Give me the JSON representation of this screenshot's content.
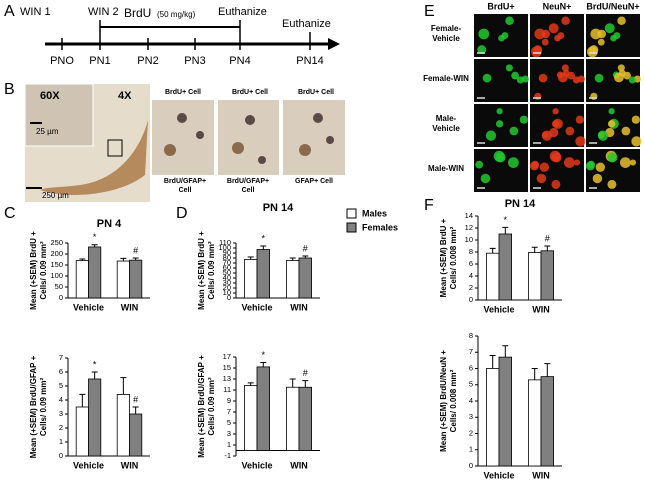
{
  "panel_labels": [
    "A",
    "B",
    "C",
    "D",
    "E",
    "F"
  ],
  "timeline": {
    "treatments": [
      "WIN 1",
      "WIN 2"
    ],
    "brdu": "BrdU",
    "brdu_dose": "(50 mg/kg)",
    "euthanize": [
      "Euthanize",
      "Euthanize"
    ],
    "days": [
      "PNO",
      "PN1",
      "PN2",
      "PN3",
      "PN4",
      "PN14"
    ]
  },
  "micrographs": {
    "magnifications": [
      "60X",
      "4X"
    ],
    "scale_bars": [
      "25 µm",
      "250 µm"
    ],
    "cell_labels": [
      [
        "BrdU+ Cell"
      ],
      [
        "BrdU/GFAP+",
        "Cell"
      ],
      [
        "BrdU+ Cell"
      ],
      [
        "BrdU/GFAP+",
        "Cell"
      ],
      [
        "BrdU+ Cell"
      ],
      [
        "GFAP+ Cell"
      ]
    ]
  },
  "fluorescence": {
    "columns": [
      "BrdU+",
      "NeuN+",
      "BrdU/NeuN+"
    ],
    "rows": [
      [
        "Female-",
        "Vehicle"
      ],
      [
        "Female-WIN"
      ],
      [
        "Male-",
        "Vehicle"
      ],
      [
        "Male-WIN"
      ]
    ]
  },
  "chart_data": [
    {
      "type": "bar",
      "title": "PN 4",
      "ylabel": [
        "Mean (+SEM) BrdU +",
        "Cells/ 0.09 mm²"
      ],
      "categories": [
        "Vehicle",
        "WIN"
      ],
      "series": [
        {
          "name": "Males",
          "color": "#ffffff",
          "values": [
            170,
            168
          ],
          "errors": [
            7,
            12
          ]
        },
        {
          "name": "Females",
          "color": "#808080",
          "values": [
            232,
            172
          ],
          "errors": [
            10,
            10
          ]
        }
      ],
      "annotations": [
        {
          "text": "*",
          "series": 1,
          "index": 0
        },
        {
          "text": "#",
          "series": 1,
          "index": 1
        }
      ],
      "ylim": [
        0,
        250
      ],
      "yticks": [
        0,
        50,
        100,
        150,
        200,
        250
      ]
    },
    {
      "type": "bar",
      "ylabel": [
        "Mean (+SEM) BrdU/GFAP +",
        "Cells/ 0.09 mm²"
      ],
      "categories": [
        "Vehicle",
        "WIN"
      ],
      "series": [
        {
          "color": "#ffffff",
          "values": [
            3.5,
            4.4
          ],
          "errors": [
            0.9,
            1.2
          ]
        },
        {
          "color": "#808080",
          "values": [
            5.5,
            3.0
          ],
          "errors": [
            0.5,
            0.5
          ]
        }
      ],
      "annotations": [
        {
          "text": "*",
          "series": 1,
          "index": 0
        },
        {
          "text": "#",
          "series": 1,
          "index": 1
        }
      ],
      "ylim": [
        0,
        7
      ],
      "yticks": [
        0,
        1,
        2,
        3,
        4,
        5,
        6,
        7
      ]
    },
    {
      "type": "bar",
      "title": "PN 14",
      "ylabel": [
        "Mean (+SEM) BrdU +",
        "Cells/ 0.09 mm²"
      ],
      "categories": [
        "Vehicle",
        "WIN"
      ],
      "series": [
        {
          "color": "#ffffff",
          "values": [
            77,
            75
          ],
          "errors": [
            5,
            5
          ]
        },
        {
          "color": "#808080",
          "values": [
            97,
            80
          ],
          "errors": [
            7,
            4
          ]
        }
      ],
      "annotations": [
        {
          "text": "*",
          "series": 1,
          "index": 0
        },
        {
          "text": "#",
          "series": 1,
          "index": 1
        }
      ],
      "ylim": [
        0,
        110
      ],
      "yticks": [
        0,
        10,
        20,
        30,
        40,
        50,
        60,
        70,
        80,
        90,
        100,
        110
      ]
    },
    {
      "type": "bar",
      "ylabel": [
        "Mean (+SEM) BrdU/GFAP +",
        "Cells/ 0.09 mm²"
      ],
      "categories": [
        "Vehicle",
        "WIN"
      ],
      "series": [
        {
          "color": "#ffffff",
          "values": [
            11.8,
            11.5
          ],
          "errors": [
            0.5,
            1.5
          ]
        },
        {
          "color": "#808080",
          "values": [
            15.2,
            11.5
          ],
          "errors": [
            0.8,
            1.2
          ]
        }
      ],
      "annotations": [
        {
          "text": "*",
          "series": 1,
          "index": 0
        },
        {
          "text": "#",
          "series": 1,
          "index": 1
        }
      ],
      "ylim": [
        -1,
        17
      ],
      "yticks": [
        -1,
        1,
        3,
        5,
        7,
        9,
        11,
        13,
        15,
        17
      ]
    },
    {
      "type": "bar",
      "title": "PN 14",
      "ylabel": [
        "Mean (+SEM) BrdU +",
        "Cells/ 0.008 mm²"
      ],
      "categories": [
        "Vehicle",
        "WIN"
      ],
      "series": [
        {
          "color": "#ffffff",
          "values": [
            7.8,
            7.9
          ],
          "errors": [
            0.8,
            0.9
          ]
        },
        {
          "color": "#808080",
          "values": [
            11,
            8.2
          ],
          "errors": [
            1.1,
            0.8
          ]
        }
      ],
      "annotations": [
        {
          "text": "*",
          "series": 1,
          "index": 0
        },
        {
          "text": "#",
          "series": 1,
          "index": 1
        }
      ],
      "ylim": [
        0,
        14
      ],
      "yticks": [
        0,
        2,
        4,
        6,
        8,
        10,
        12,
        14
      ]
    },
    {
      "type": "bar",
      "ylabel": [
        "Mean (+SEM) BrdU/NeuN +",
        "Cells/ 0.008 mm²"
      ],
      "categories": [
        "Vehicle",
        "WIN"
      ],
      "series": [
        {
          "color": "#ffffff",
          "values": [
            6.0,
            5.3
          ],
          "errors": [
            0.8,
            0.7
          ]
        },
        {
          "color": "#808080",
          "values": [
            6.7,
            5.5
          ],
          "errors": [
            0.7,
            0.8
          ]
        }
      ],
      "ylim": [
        0,
        8
      ],
      "yticks": [
        0,
        1,
        2,
        3,
        4,
        5,
        6,
        7,
        8
      ]
    }
  ]
}
